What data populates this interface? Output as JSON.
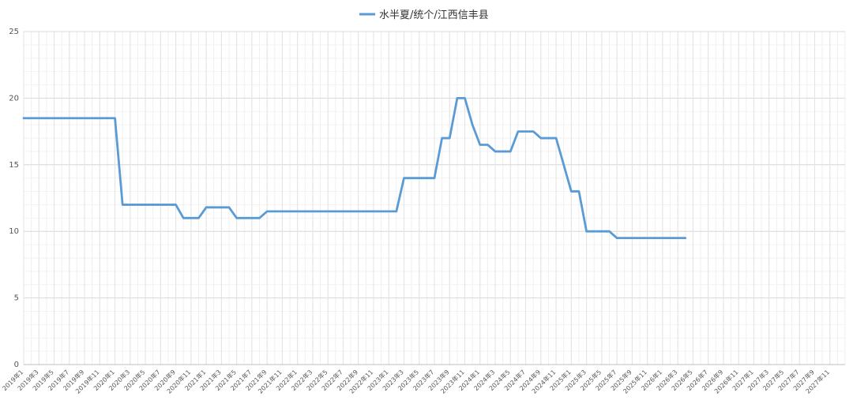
{
  "chart_data": {
    "type": "line",
    "title": "",
    "xlabel": "",
    "ylabel": "",
    "ylim": [
      0,
      25
    ],
    "yticks": [
      0,
      5,
      10,
      15,
      20,
      25
    ],
    "grid": true,
    "legend": "top-center",
    "categories": [
      "2019年1",
      "2019年3",
      "2019年5",
      "2019年7",
      "2019年9",
      "2019年11",
      "2020年1",
      "2020年3",
      "2020年5",
      "2020年7",
      "2020年9",
      "2020年11",
      "2021年1",
      "2021年3",
      "2021年5",
      "2021年7",
      "2021年9",
      "2021年11",
      "2022年1",
      "2022年3",
      "2022年5",
      "2022年7",
      "2022年9",
      "2022年11",
      "2023年1",
      "2023年3",
      "2023年5",
      "2023年7",
      "2023年9",
      "2023年11",
      "2024年1",
      "2024年3",
      "2024年5",
      "2024年7",
      "2024年9",
      "2024年11",
      "2025年1",
      "2025年3",
      "2025年5",
      "2025年7",
      "2025年9",
      "2025年11",
      "2026年1",
      "2026年3",
      "2026年5",
      "2026年7",
      "2026年9",
      "2026年11",
      "2027年1",
      "2027年3",
      "2027年5",
      "2027年7",
      "2027年9",
      "2027年11"
    ],
    "series": [
      {
        "name": "水半夏/统个/江西信丰县",
        "color": "#5b9bd5",
        "points": [
          [
            "2019年1",
            18.5
          ],
          [
            "2020年1",
            18.5
          ],
          [
            "2020年2",
            12.0
          ],
          [
            "2020年9",
            12.0
          ],
          [
            "2020年10",
            11.0
          ],
          [
            "2020年12",
            11.0
          ],
          [
            "2021年1",
            11.8
          ],
          [
            "2021年4",
            11.8
          ],
          [
            "2021年5",
            11.0
          ],
          [
            "2021年8",
            11.0
          ],
          [
            "2021年9",
            11.5
          ],
          [
            "2023年2",
            11.5
          ],
          [
            "2023年3",
            14.0
          ],
          [
            "2023年7",
            14.0
          ],
          [
            "2023年8",
            17.0
          ],
          [
            "2023年9",
            17.0
          ],
          [
            "2023年10",
            20.0
          ],
          [
            "2023年11",
            20.0
          ],
          [
            "2023年12",
            18.0
          ],
          [
            "2024年1",
            16.5
          ],
          [
            "2024年2",
            16.5
          ],
          [
            "2024年3",
            16.0
          ],
          [
            "2024年5",
            16.0
          ],
          [
            "2024年6",
            17.5
          ],
          [
            "2024年8",
            17.5
          ],
          [
            "2024年9",
            17.0
          ],
          [
            "2024年11",
            17.0
          ],
          [
            "2025年1",
            13.0
          ],
          [
            "2025年2",
            13.0
          ],
          [
            "2025年3",
            10.0
          ],
          [
            "2025年6",
            10.0
          ],
          [
            "2025年7",
            9.5
          ],
          [
            "2026年4",
            9.5
          ]
        ]
      }
    ]
  }
}
